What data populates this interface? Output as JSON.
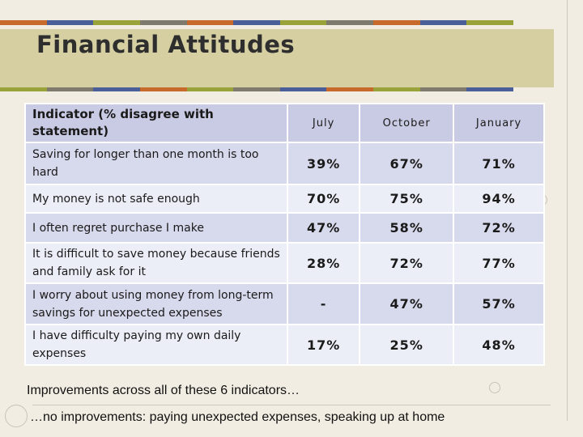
{
  "title": "Financial Attitudes",
  "colors": {
    "stripe": [
      "#c96a2d",
      "#4a5f9a",
      "#9aa33a",
      "#7e7a6e",
      "#c96a2d",
      "#4a5f9a",
      "#9aa33a",
      "#7e7a6e",
      "#c96a2d",
      "#4a5f9a",
      "#9aa33a"
    ],
    "title_band": "#d6cfa2",
    "header_fill": "#c8cbe3",
    "row_odd_fill": "#d7d9ec",
    "row_even_fill": "#eceef7"
  },
  "table": {
    "header": {
      "indicator": "Indicator (% disagree with statement)",
      "july": "July",
      "october": "October",
      "january": "January"
    },
    "rows": [
      {
        "indicator": "Saving for longer than one month is too hard",
        "july": "39%",
        "october": "67%",
        "january": "71%"
      },
      {
        "indicator": "My money is not safe enough",
        "july": "70%",
        "october": "75%",
        "january": "94%"
      },
      {
        "indicator": "I often regret purchase I make",
        "july": "47%",
        "october": "58%",
        "january": "72%"
      },
      {
        "indicator": "It is difficult to save money because friends and family ask for it",
        "july": "28%",
        "october": "72%",
        "january": "77%"
      },
      {
        "indicator": "I worry about using money from long-term savings for unexpected expenses",
        "july": "-",
        "october": "47%",
        "january": "57%"
      },
      {
        "indicator": "I have difficulty paying my own daily expenses",
        "july": "17%",
        "october": "25%",
        "january": "48%"
      }
    ]
  },
  "notes": {
    "line1": "Improvements across all of these 6 indicators…",
    "line2": "…no improvements: paying unexpected expenses, speaking up at home"
  }
}
